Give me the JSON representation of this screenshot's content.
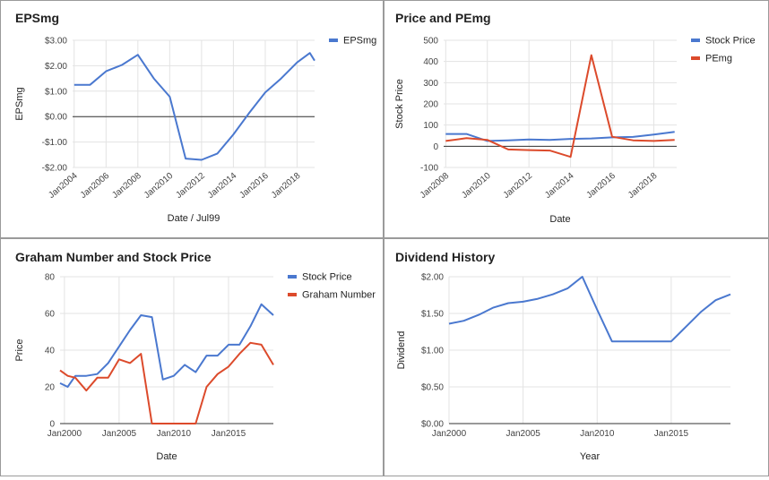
{
  "colors": {
    "blue": "#4a78cf",
    "red": "#dc4a2b",
    "grid": "#e3e3e3",
    "zero": "#333333"
  },
  "chart_data": [
    {
      "type": "line",
      "title": "EPSmg",
      "xlabel": "Date / Jul99",
      "ylabel": "EPSmg",
      "xlim": [
        2003.9,
        2019.1
      ],
      "ylim": [
        -2,
        3
      ],
      "yticks": [
        3,
        2,
        1,
        0,
        -1,
        -2
      ],
      "ytick_labels": [
        "$3.00",
        "$2.00",
        "$1.00",
        "$0.00",
        "-$1.00",
        "-$2.00"
      ],
      "xticks": [
        2004,
        2006,
        2008,
        2010,
        2012,
        2014,
        2016,
        2018
      ],
      "xtick_labels": [
        "Jan2004",
        "Jan2006",
        "Jan2008",
        "Jan2010",
        "Jan2012",
        "Jan2014",
        "Jan2016",
        "Jan2018"
      ],
      "xtick_rotate": true,
      "zero_line": true,
      "legend": "right",
      "series": [
        {
          "name": "EPSmg",
          "color": "blue",
          "x": [
            2004,
            2005,
            2006,
            2007,
            2008,
            2009,
            2010,
            2011,
            2012,
            2013,
            2014,
            2015,
            2016,
            2017,
            2018,
            2018.8,
            2019.1
          ],
          "y": [
            1.25,
            1.25,
            1.78,
            2.03,
            2.43,
            1.5,
            0.78,
            -1.65,
            -1.7,
            -1.45,
            -0.7,
            0.15,
            0.95,
            1.5,
            2.13,
            2.5,
            2.2
          ]
        }
      ]
    },
    {
      "type": "line",
      "title": "Price and PEmg",
      "xlabel": "Date",
      "ylabel": "Stock Price",
      "xlim": [
        2007.9,
        2019.1
      ],
      "ylim": [
        -100,
        500
      ],
      "yticks": [
        500,
        400,
        300,
        200,
        100,
        0,
        -100
      ],
      "ytick_labels": [
        "500",
        "400",
        "300",
        "200",
        "100",
        "0",
        "-100"
      ],
      "xticks": [
        2008,
        2010,
        2012,
        2014,
        2016,
        2018
      ],
      "xtick_labels": [
        "Jan2008",
        "Jan2010",
        "Jan2012",
        "Jan2014",
        "Jan2016",
        "Jan2018"
      ],
      "xtick_rotate": true,
      "zero_line": true,
      "legend": "right",
      "series": [
        {
          "name": "Stock Price",
          "color": "blue",
          "x": [
            2008,
            2009,
            2010,
            2011,
            2012,
            2013,
            2014,
            2015,
            2016,
            2017,
            2018,
            2019
          ],
          "y": [
            58,
            58,
            25,
            28,
            32,
            30,
            35,
            37,
            42,
            44,
            55,
            68
          ]
        },
        {
          "name": "PEmg",
          "color": "red",
          "x": [
            2008,
            2009,
            2010,
            2011,
            2012,
            2013,
            2014,
            2015,
            2016,
            2017,
            2018,
            2019
          ],
          "y": [
            25,
            38,
            30,
            -15,
            -18,
            -20,
            -50,
            430,
            45,
            28,
            25,
            30
          ]
        }
      ]
    },
    {
      "type": "line",
      "title": "Graham Number and Stock Price",
      "xlabel": "Date",
      "ylabel": "Price",
      "xlim": [
        1999.6,
        2019.1
      ],
      "ylim": [
        0,
        80
      ],
      "yticks": [
        80,
        60,
        40,
        20,
        0
      ],
      "ytick_labels": [
        "80",
        "60",
        "40",
        "20",
        "0"
      ],
      "xticks": [
        2000,
        2005,
        2010,
        2015
      ],
      "xtick_labels": [
        "Jan2000",
        "Jan2005",
        "Jan2010",
        "Jan2015"
      ],
      "xtick_rotate": false,
      "zero_line": true,
      "legend": "right",
      "series": [
        {
          "name": "Stock Price",
          "color": "blue",
          "x": [
            1999.6,
            2000.3,
            2001,
            2002,
            2003,
            2004,
            2005,
            2006,
            2007,
            2008,
            2009,
            2010,
            2011,
            2012,
            2013,
            2014,
            2015,
            2016,
            2017,
            2018,
            2019.1
          ],
          "y": [
            22,
            20,
            26,
            26,
            27,
            33,
            42,
            51,
            59,
            58,
            24,
            26,
            32,
            28,
            37,
            37,
            43,
            43,
            53,
            65,
            59
          ]
        },
        {
          "name": "Graham Number",
          "color": "red",
          "x": [
            1999.6,
            2000.3,
            2001,
            2002,
            2003,
            2004,
            2005,
            2006,
            2007,
            2008,
            2009,
            2010,
            2011,
            2012,
            2013,
            2014,
            2015,
            2016,
            2017,
            2018,
            2019.1
          ],
          "y": [
            29,
            26,
            25,
            18,
            25,
            25,
            35,
            33,
            38,
            0,
            0,
            0,
            0,
            0,
            20,
            27,
            31,
            38,
            44,
            43,
            32
          ]
        }
      ]
    },
    {
      "type": "line",
      "title": "Dividend History",
      "xlabel": "Year",
      "ylabel": "Dividend",
      "xlim": [
        2000,
        2019
      ],
      "ylim": [
        0,
        2
      ],
      "yticks": [
        2,
        1.5,
        1,
        0.5,
        0
      ],
      "ytick_labels": [
        "$2.00",
        "$1.50",
        "$1.00",
        "$0.50",
        "$0.00"
      ],
      "xticks": [
        2000,
        2005,
        2010,
        2015
      ],
      "xtick_labels": [
        "Jan2000",
        "Jan2005",
        "Jan2010",
        "Jan2015"
      ],
      "xtick_rotate": false,
      "zero_line": true,
      "legend": "none",
      "series": [
        {
          "name": "",
          "color": "blue",
          "x": [
            2000,
            2001,
            2002,
            2003,
            2004,
            2005,
            2006,
            2007,
            2008,
            2009,
            2010,
            2011,
            2012,
            2013,
            2014,
            2015,
            2016,
            2017,
            2018,
            2019
          ],
          "y": [
            1.36,
            1.4,
            1.48,
            1.58,
            1.64,
            1.66,
            1.7,
            1.76,
            1.84,
            2.0,
            1.55,
            1.12,
            1.12,
            1.12,
            1.12,
            1.12,
            1.32,
            1.52,
            1.68,
            1.76
          ]
        }
      ]
    }
  ]
}
